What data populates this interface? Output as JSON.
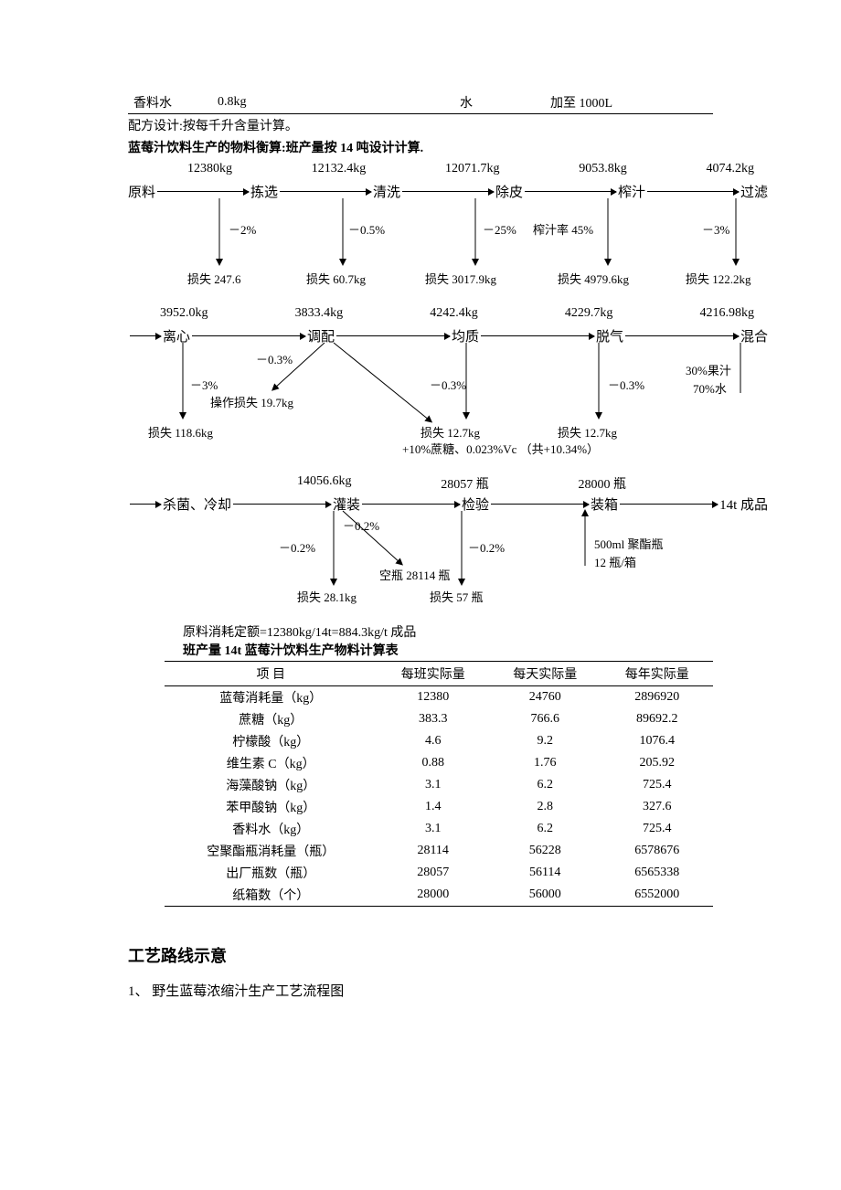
{
  "top_table": {
    "c1": "香料水",
    "c2": "0.8kg",
    "c3": "水",
    "c4": "加至 1000L",
    "note": "配方设计:按每千升含量计算。"
  },
  "balance_title": "蓝莓汁饮料生产的物料衡算:班产量按 14 吨设计计算.",
  "stage1": {
    "vals": [
      "12380kg",
      "12132.4kg",
      "12071.7kg",
      "9053.8kg",
      "4074.2kg"
    ],
    "nodes": [
      "原料",
      "拣选",
      "清洗",
      "除皮",
      "榨汁",
      "过滤"
    ],
    "pcts": [
      "－2%",
      "－0.5%",
      "－25%",
      "榨汁率 45%",
      "－3%"
    ],
    "loss": [
      "损失 247.6",
      "损失 60.7kg",
      "损失 3017.9kg",
      "损失 4979.6kg",
      "损失 122.2kg"
    ]
  },
  "stage2": {
    "vals": [
      "3952.0kg",
      "3833.4kg",
      "4242.4kg",
      "4229.7kg",
      "4216.98kg"
    ],
    "nodes": [
      "离心",
      "调配",
      "均质",
      "脱气",
      "混合"
    ],
    "pct_left": "－3%",
    "pct_op": "－0.3%",
    "op_loss": "操作损失 19.7kg",
    "loss_left": "损失 118.6kg",
    "pct_mid": "－0.3%",
    "loss_mid": "损失 12.7kg",
    "add_line": "+10%蔗糖、0.023%Vc  （共+10.34%）",
    "pct_q": "－0.3%",
    "loss_q": "损失 12.7kg",
    "mix1": "30%果汁",
    "mix2": "70%水"
  },
  "stage3": {
    "vals": [
      "",
      "14056.6kg",
      "28057 瓶",
      "28000 瓶",
      ""
    ],
    "nodes": [
      "杀菌、冷却",
      "灌装",
      "检验",
      "装箱",
      "14t 成品"
    ],
    "pct_a": "－0.2%",
    "pct_b": "－0.2%",
    "pct_c": "－0.2%",
    "empty": "空瓶 28114 瓶",
    "loss_a": "损失 28.1kg",
    "loss_c": "损失 57 瓶",
    "pack1": "500ml 聚酯瓶",
    "pack2": "12 瓶/箱"
  },
  "consume": "原料消耗定额=12380kg/14t=884.3kg/t 成品",
  "mat_title": "班产量 14t 蓝莓汁饮料生产物料计算表",
  "mat_cols": [
    "项  目",
    "每班实际量",
    "每天实际量",
    "每年实际量"
  ],
  "mat_rows": [
    [
      "蓝莓消耗量（kg）",
      "12380",
      "24760",
      "2896920"
    ],
    [
      "蔗糖（kg）",
      "383.3",
      "766.6",
      "89692.2"
    ],
    [
      "柠檬酸（kg）",
      "4.6",
      "9.2",
      "1076.4"
    ],
    [
      "维生素 C（kg）",
      "0.88",
      "1.76",
      "205.92"
    ],
    [
      "海藻酸钠（kg）",
      "3.1",
      "6.2",
      "725.4"
    ],
    [
      "苯甲酸钠（kg）",
      "1.4",
      "2.8",
      "327.6"
    ],
    [
      "香料水（kg）",
      "3.1",
      "6.2",
      "725.4"
    ],
    [
      "空聚酯瓶消耗量（瓶）",
      "28114",
      "56228",
      "6578676"
    ],
    [
      "出厂瓶数（瓶）",
      "28057",
      "56114",
      "6565338"
    ],
    [
      "纸箱数（个）",
      "28000",
      "56000",
      "6552000"
    ]
  ],
  "section2": "工艺路线示意",
  "sub1": "1、 野生蓝莓浓缩汁生产工艺流程图"
}
